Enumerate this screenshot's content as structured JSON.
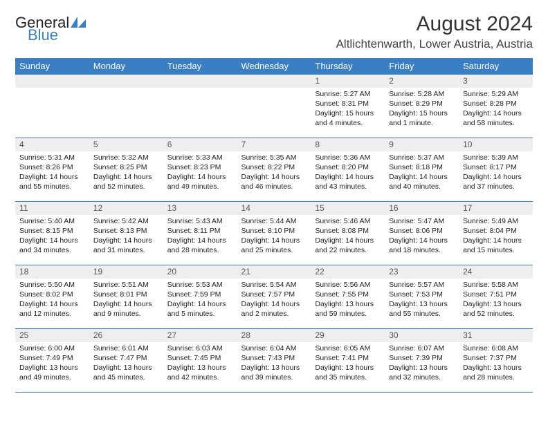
{
  "logo": {
    "word1": "General",
    "word2": "Blue"
  },
  "title": "August 2024",
  "location": "Altlichtenwarth, Lower Austria, Austria",
  "colors": {
    "accent": "#3a7fc4",
    "header_bg": "#3a7fc4",
    "header_text": "#ffffff",
    "daynum_bg": "#eeeeee",
    "border": "#3a7fc4",
    "body_text": "#222222",
    "background": "#ffffff"
  },
  "day_headers": [
    "Sunday",
    "Monday",
    "Tuesday",
    "Wednesday",
    "Thursday",
    "Friday",
    "Saturday"
  ],
  "weeks": [
    [
      null,
      null,
      null,
      null,
      {
        "n": "1",
        "sr": "Sunrise: 5:27 AM",
        "ss": "Sunset: 8:31 PM",
        "d1": "Daylight: 15 hours",
        "d2": "and 4 minutes."
      },
      {
        "n": "2",
        "sr": "Sunrise: 5:28 AM",
        "ss": "Sunset: 8:29 PM",
        "d1": "Daylight: 15 hours",
        "d2": "and 1 minute."
      },
      {
        "n": "3",
        "sr": "Sunrise: 5:29 AM",
        "ss": "Sunset: 8:28 PM",
        "d1": "Daylight: 14 hours",
        "d2": "and 58 minutes."
      }
    ],
    [
      {
        "n": "4",
        "sr": "Sunrise: 5:31 AM",
        "ss": "Sunset: 8:26 PM",
        "d1": "Daylight: 14 hours",
        "d2": "and 55 minutes."
      },
      {
        "n": "5",
        "sr": "Sunrise: 5:32 AM",
        "ss": "Sunset: 8:25 PM",
        "d1": "Daylight: 14 hours",
        "d2": "and 52 minutes."
      },
      {
        "n": "6",
        "sr": "Sunrise: 5:33 AM",
        "ss": "Sunset: 8:23 PM",
        "d1": "Daylight: 14 hours",
        "d2": "and 49 minutes."
      },
      {
        "n": "7",
        "sr": "Sunrise: 5:35 AM",
        "ss": "Sunset: 8:22 PM",
        "d1": "Daylight: 14 hours",
        "d2": "and 46 minutes."
      },
      {
        "n": "8",
        "sr": "Sunrise: 5:36 AM",
        "ss": "Sunset: 8:20 PM",
        "d1": "Daylight: 14 hours",
        "d2": "and 43 minutes."
      },
      {
        "n": "9",
        "sr": "Sunrise: 5:37 AM",
        "ss": "Sunset: 8:18 PM",
        "d1": "Daylight: 14 hours",
        "d2": "and 40 minutes."
      },
      {
        "n": "10",
        "sr": "Sunrise: 5:39 AM",
        "ss": "Sunset: 8:17 PM",
        "d1": "Daylight: 14 hours",
        "d2": "and 37 minutes."
      }
    ],
    [
      {
        "n": "11",
        "sr": "Sunrise: 5:40 AM",
        "ss": "Sunset: 8:15 PM",
        "d1": "Daylight: 14 hours",
        "d2": "and 34 minutes."
      },
      {
        "n": "12",
        "sr": "Sunrise: 5:42 AM",
        "ss": "Sunset: 8:13 PM",
        "d1": "Daylight: 14 hours",
        "d2": "and 31 minutes."
      },
      {
        "n": "13",
        "sr": "Sunrise: 5:43 AM",
        "ss": "Sunset: 8:11 PM",
        "d1": "Daylight: 14 hours",
        "d2": "and 28 minutes."
      },
      {
        "n": "14",
        "sr": "Sunrise: 5:44 AM",
        "ss": "Sunset: 8:10 PM",
        "d1": "Daylight: 14 hours",
        "d2": "and 25 minutes."
      },
      {
        "n": "15",
        "sr": "Sunrise: 5:46 AM",
        "ss": "Sunset: 8:08 PM",
        "d1": "Daylight: 14 hours",
        "d2": "and 22 minutes."
      },
      {
        "n": "16",
        "sr": "Sunrise: 5:47 AM",
        "ss": "Sunset: 8:06 PM",
        "d1": "Daylight: 14 hours",
        "d2": "and 18 minutes."
      },
      {
        "n": "17",
        "sr": "Sunrise: 5:49 AM",
        "ss": "Sunset: 8:04 PM",
        "d1": "Daylight: 14 hours",
        "d2": "and 15 minutes."
      }
    ],
    [
      {
        "n": "18",
        "sr": "Sunrise: 5:50 AM",
        "ss": "Sunset: 8:02 PM",
        "d1": "Daylight: 14 hours",
        "d2": "and 12 minutes."
      },
      {
        "n": "19",
        "sr": "Sunrise: 5:51 AM",
        "ss": "Sunset: 8:01 PM",
        "d1": "Daylight: 14 hours",
        "d2": "and 9 minutes."
      },
      {
        "n": "20",
        "sr": "Sunrise: 5:53 AM",
        "ss": "Sunset: 7:59 PM",
        "d1": "Daylight: 14 hours",
        "d2": "and 5 minutes."
      },
      {
        "n": "21",
        "sr": "Sunrise: 5:54 AM",
        "ss": "Sunset: 7:57 PM",
        "d1": "Daylight: 14 hours",
        "d2": "and 2 minutes."
      },
      {
        "n": "22",
        "sr": "Sunrise: 5:56 AM",
        "ss": "Sunset: 7:55 PM",
        "d1": "Daylight: 13 hours",
        "d2": "and 59 minutes."
      },
      {
        "n": "23",
        "sr": "Sunrise: 5:57 AM",
        "ss": "Sunset: 7:53 PM",
        "d1": "Daylight: 13 hours",
        "d2": "and 55 minutes."
      },
      {
        "n": "24",
        "sr": "Sunrise: 5:58 AM",
        "ss": "Sunset: 7:51 PM",
        "d1": "Daylight: 13 hours",
        "d2": "and 52 minutes."
      }
    ],
    [
      {
        "n": "25",
        "sr": "Sunrise: 6:00 AM",
        "ss": "Sunset: 7:49 PM",
        "d1": "Daylight: 13 hours",
        "d2": "and 49 minutes."
      },
      {
        "n": "26",
        "sr": "Sunrise: 6:01 AM",
        "ss": "Sunset: 7:47 PM",
        "d1": "Daylight: 13 hours",
        "d2": "and 45 minutes."
      },
      {
        "n": "27",
        "sr": "Sunrise: 6:03 AM",
        "ss": "Sunset: 7:45 PM",
        "d1": "Daylight: 13 hours",
        "d2": "and 42 minutes."
      },
      {
        "n": "28",
        "sr": "Sunrise: 6:04 AM",
        "ss": "Sunset: 7:43 PM",
        "d1": "Daylight: 13 hours",
        "d2": "and 39 minutes."
      },
      {
        "n": "29",
        "sr": "Sunrise: 6:05 AM",
        "ss": "Sunset: 7:41 PM",
        "d1": "Daylight: 13 hours",
        "d2": "and 35 minutes."
      },
      {
        "n": "30",
        "sr": "Sunrise: 6:07 AM",
        "ss": "Sunset: 7:39 PM",
        "d1": "Daylight: 13 hours",
        "d2": "and 32 minutes."
      },
      {
        "n": "31",
        "sr": "Sunrise: 6:08 AM",
        "ss": "Sunset: 7:37 PM",
        "d1": "Daylight: 13 hours",
        "d2": "and 28 minutes."
      }
    ]
  ]
}
